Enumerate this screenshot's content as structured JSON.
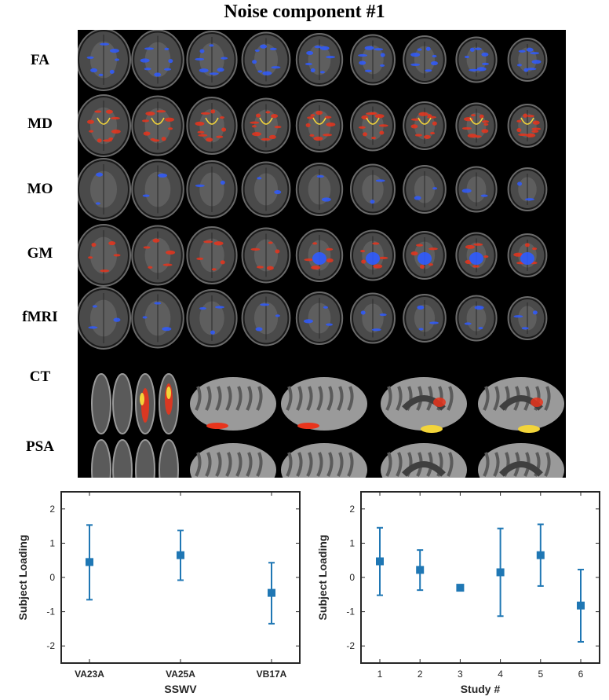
{
  "figure": {
    "title": "Noise component #1",
    "row_labels": [
      "FA",
      "MD",
      "MO",
      "GM",
      "fMRI",
      "CT",
      "PSA"
    ]
  },
  "colors": {
    "panel_bg": "#000000",
    "slice_tissue": "#4a4a4a",
    "blue_overlay": "#2f5bff",
    "red_overlay": "#e8341c",
    "yellow_overlay": "#f2d43a",
    "cortex_gyri": "#9a9a9a",
    "cortex_sulci": "#5a5a5a",
    "marker": "#1f77b4"
  },
  "chart_data": [
    {
      "type": "scatter",
      "title": "",
      "xlabel": "SSWV",
      "ylabel": "Subject Loading",
      "categories": [
        "VA23A",
        "VA25A",
        "VB17A"
      ],
      "values": [
        0.45,
        0.65,
        -0.45
      ],
      "error_low": [
        -0.65,
        -0.08,
        -1.35
      ],
      "error_high": [
        1.53,
        1.37,
        0.43
      ],
      "ylim": [
        -2.5,
        2.5
      ],
      "yticks": [
        "2",
        "1",
        "0",
        "-1",
        "-2"
      ],
      "grid": false
    },
    {
      "type": "scatter",
      "title": "",
      "xlabel": "Study #",
      "ylabel": "Subject Loading",
      "categories": [
        "1",
        "2",
        "3",
        "4",
        "5",
        "6"
      ],
      "values": [
        0.47,
        0.22,
        -0.3,
        0.15,
        0.65,
        -0.82
      ],
      "error_low": [
        -0.52,
        -0.37,
        -0.35,
        -1.13,
        -0.25,
        -1.88
      ],
      "error_high": [
        1.45,
        0.8,
        -0.25,
        1.43,
        1.55,
        0.23
      ],
      "ylim": [
        -2.5,
        2.5
      ],
      "yticks": [
        "2",
        "1",
        "0",
        "-1",
        "-2"
      ],
      "grid": false
    }
  ]
}
